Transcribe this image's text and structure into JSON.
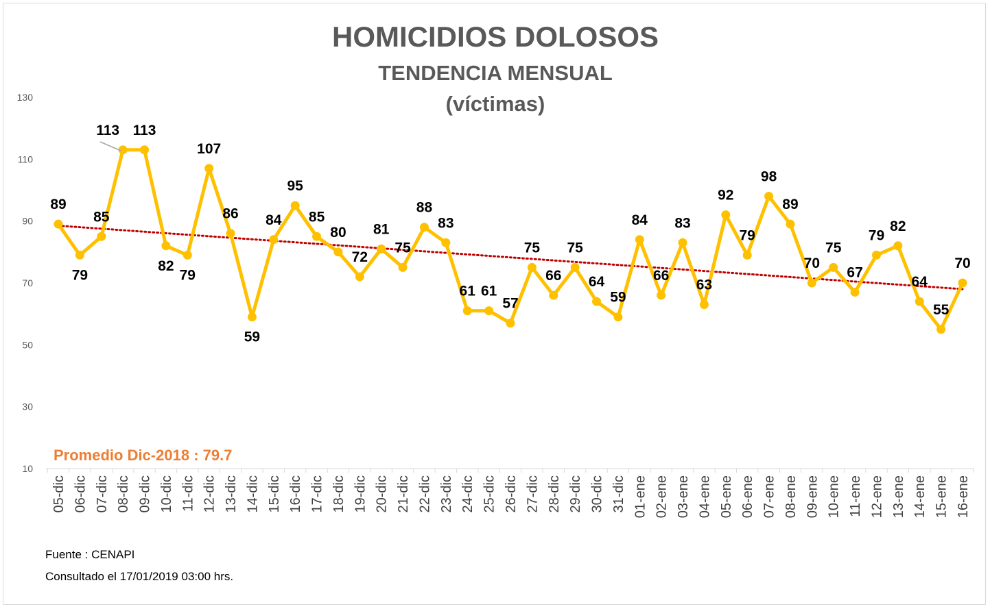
{
  "chart_data": {
    "type": "line",
    "title": "HOMICIDIOS DOLOSOS",
    "subtitle": "TENDENCIA MENSUAL",
    "subtitle2": "(víctimas)",
    "xlabel": "",
    "ylabel": "",
    "ylim": [
      10,
      130
    ],
    "yticks": [
      10,
      30,
      50,
      70,
      90,
      110,
      130
    ],
    "grid": false,
    "categories": [
      "05-dic",
      "06-dic",
      "07-dic",
      "08-dic",
      "09-dic",
      "10-dic",
      "11-dic",
      "12-dic",
      "13-dic",
      "14-dic",
      "15-dic",
      "16-dic",
      "17-dic",
      "18-dic",
      "19-dic",
      "20-dic",
      "21-dic",
      "22-dic",
      "23-dic",
      "24-dic",
      "25-dic",
      "26-dic",
      "27-dic",
      "28-dic",
      "29-dic",
      "30-dic",
      "31-dic",
      "01-ene",
      "02-ene",
      "03-ene",
      "04-ene",
      "05-ene",
      "06-ene",
      "07-ene",
      "08-ene",
      "09-ene",
      "10-ene",
      "11-ene",
      "12-ene",
      "13-ene",
      "14-ene",
      "15-ene",
      "16-ene"
    ],
    "series": [
      {
        "values": [
          89,
          79,
          85,
          113,
          113,
          82,
          79,
          107,
          86,
          59,
          84,
          95,
          85,
          80,
          72,
          81,
          75,
          88,
          83,
          61,
          61,
          57,
          75,
          66,
          75,
          64,
          59,
          84,
          66,
          83,
          63,
          92,
          79,
          98,
          89,
          70,
          75,
          67,
          79,
          82,
          64,
          55,
          70
        ],
        "color": "#FFC000",
        "label_offsets": [
          "a",
          "b",
          "a",
          "a",
          "a",
          "b",
          "b",
          "a",
          "a",
          "b",
          "a",
          "a",
          "a",
          "a",
          "a",
          "a",
          "a",
          "a",
          "a",
          "a",
          "a",
          "a",
          "a",
          "a",
          "a",
          "a",
          "a",
          "a",
          "a",
          "a",
          "a",
          "a",
          "a",
          "a",
          "a",
          "a",
          "a",
          "a",
          "a",
          "a",
          "a",
          "a",
          "a"
        ]
      }
    ],
    "trendline": {
      "start": 88.5,
      "end": 68.0,
      "color": "#C00000",
      "style": "dotted"
    },
    "average_label": "Promedio Dic-2018 : 79.7",
    "average_color": "#ED7D31"
  },
  "footer": {
    "source": "Fuente : CENAPI",
    "consulted": "Consultado el 17/01/2019  03:00 hrs."
  }
}
